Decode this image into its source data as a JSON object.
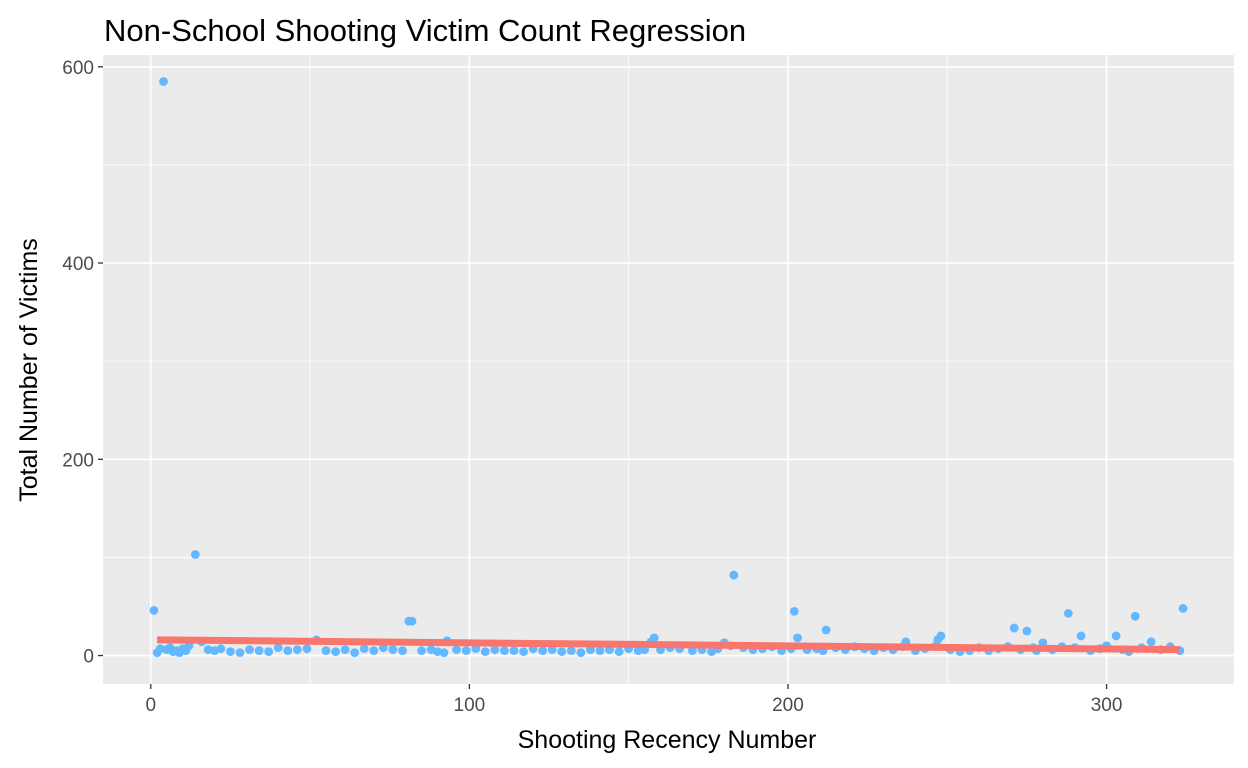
{
  "chart_data": {
    "type": "scatter",
    "title": "Non-School Shooting Victim Count Regression",
    "xlabel": "Shooting Recency Number",
    "ylabel": "Total Number of Victims",
    "xlim": [
      -15,
      340
    ],
    "ylim": [
      -29,
      612
    ],
    "x_ticks": [
      0,
      100,
      200,
      300
    ],
    "y_ticks": [
      0,
      200,
      400,
      600
    ],
    "x_tick_labels": [
      "0",
      "100",
      "200",
      "300"
    ],
    "y_tick_labels": [
      "0",
      "200",
      "400",
      "600"
    ],
    "grid": true,
    "legend": "none",
    "colors": {
      "panel": "#ebebeb",
      "grid": "#ffffff",
      "points": "#63b8ff",
      "regression": "#f8766d",
      "tick": "#4d4d4d"
    },
    "points": {
      "x": [
        1,
        2,
        3,
        4,
        5,
        6,
        7,
        8,
        9,
        10,
        11,
        12,
        14,
        16,
        18,
        20,
        22,
        25,
        28,
        31,
        34,
        37,
        40,
        43,
        46,
        49,
        52,
        55,
        58,
        61,
        64,
        67,
        70,
        73,
        76,
        79,
        81,
        82,
        85,
        88,
        90,
        92,
        93,
        96,
        99,
        102,
        105,
        108,
        111,
        114,
        117,
        120,
        123,
        126,
        129,
        132,
        135,
        138,
        141,
        144,
        147,
        150,
        153,
        155,
        157,
        158,
        160,
        163,
        166,
        170,
        173,
        176,
        178,
        180,
        182,
        183,
        186,
        189,
        192,
        195,
        198,
        201,
        202,
        203,
        206,
        209,
        211,
        212,
        215,
        218,
        221,
        224,
        227,
        230,
        233,
        236,
        237,
        240,
        243,
        246,
        247,
        248,
        251,
        254,
        257,
        260,
        263,
        266,
        269,
        271,
        273,
        275,
        277,
        278,
        280,
        283,
        286,
        288,
        290,
        292,
        295,
        298,
        300,
        303,
        305,
        307,
        309,
        311,
        314,
        317,
        320,
        323,
        324
      ],
      "y": [
        46,
        3,
        7,
        585,
        6,
        8,
        4,
        5,
        3,
        7,
        5,
        10,
        103,
        14,
        6,
        5,
        7,
        4,
        3,
        6,
        5,
        4,
        8,
        5,
        6,
        7,
        16,
        5,
        4,
        6,
        3,
        7,
        5,
        8,
        6,
        5,
        35,
        35,
        5,
        6,
        4,
        3,
        15,
        6,
        5,
        7,
        4,
        6,
        5,
        5,
        4,
        7,
        5,
        6,
        4,
        5,
        3,
        6,
        5,
        6,
        4,
        7,
        5,
        6,
        14,
        18,
        6,
        8,
        7,
        5,
        6,
        4,
        7,
        13,
        10,
        82,
        8,
        6,
        7,
        9,
        5,
        7,
        45,
        18,
        6,
        7,
        5,
        26,
        8,
        6,
        9,
        7,
        5,
        8,
        6,
        9,
        14,
        5,
        7,
        9,
        16,
        20,
        6,
        4,
        5,
        8,
        5,
        7,
        9,
        28,
        6,
        25,
        8,
        5,
        13,
        6,
        9,
        43,
        8,
        20,
        5,
        7,
        10,
        20,
        6,
        4,
        40,
        8,
        14,
        6,
        9,
        5,
        48
      ],
      "marker_color": "#63b8ff"
    },
    "regression": {
      "x": [
        2,
        323
      ],
      "y": [
        16,
        6
      ],
      "color": "#f8766d"
    }
  }
}
